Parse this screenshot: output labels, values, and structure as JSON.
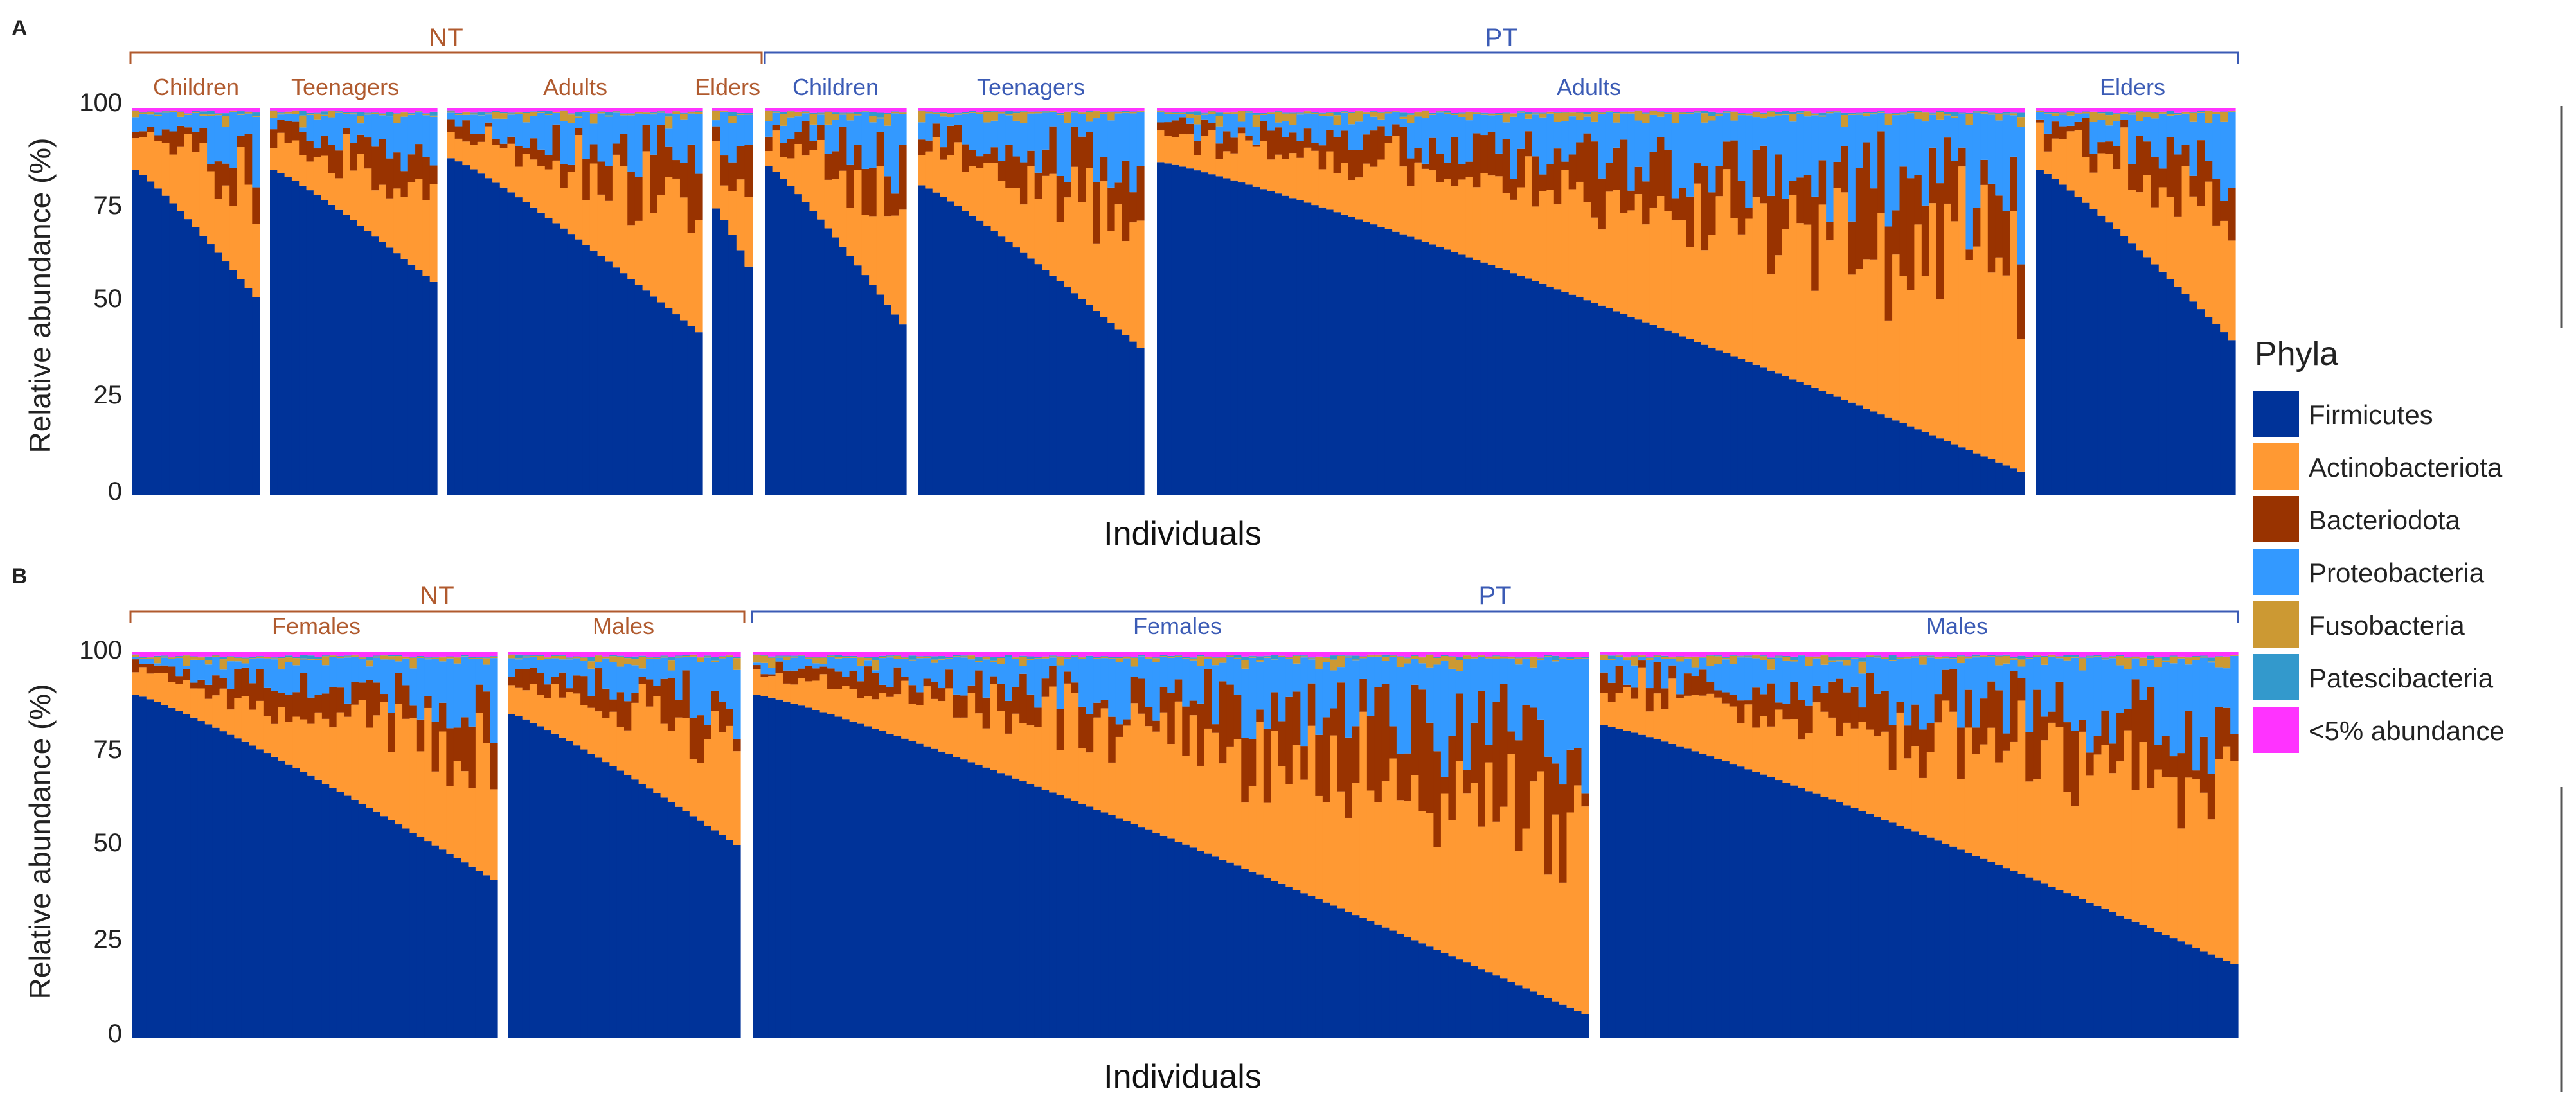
{
  "figure": {
    "panels_note": "Stacked relative-abundance bar charts of gut phyla per individual"
  },
  "colors": {
    "firmicutes": "#003399",
    "actinobacteriota": "#FF9933",
    "bacteriodota": "#993300",
    "proteobacteria": "#3399FF",
    "fusobacteria": "#CC9933",
    "patescibacteria": "#3399CC",
    "low_abundance": "#FF33FF",
    "nt_bracket": "#B05A2E",
    "pt_bracket": "#3B5BB5",
    "axis_text": "#222222"
  },
  "legend": {
    "title": "Phyla",
    "items": [
      {
        "key": "firmicutes",
        "label": "Firmicutes"
      },
      {
        "key": "actinobacteriota",
        "label": "Actinobacteriota"
      },
      {
        "key": "bacteriodota",
        "label": "Bacteriodota"
      },
      {
        "key": "proteobacteria",
        "label": "Proteobacteria"
      },
      {
        "key": "fusobacteria",
        "label": "Fusobacteria"
      },
      {
        "key": "patescibacteria",
        "label": "Patescibacteria"
      },
      {
        "key": "low_abundance",
        "label": "<5% abundance"
      }
    ]
  },
  "chart_data": [
    {
      "panel": "A",
      "type": "bar",
      "stacked": true,
      "title": "",
      "xlabel": "Individuals",
      "ylabel": "Relative abundance (%)",
      "ylim": [
        0,
        100
      ],
      "yticks": [
        0,
        25,
        50,
        75,
        100
      ],
      "groups": [
        {
          "label": "NT",
          "color_key": "nt_bracket",
          "facets": [
            {
              "label": "Children",
              "n": 17,
              "firm_start": 84,
              "firm_end": 51
            },
            {
              "label": "Teenagers",
              "n": 23,
              "firm_start": 84,
              "firm_end": 55
            },
            {
              "label": "Adults",
              "n": 34,
              "firm_start": 87,
              "firm_end": 42
            },
            {
              "label": "Elders",
              "n": 5,
              "firm_start": 74,
              "firm_end": 59
            }
          ]
        },
        {
          "label": "PT",
          "color_key": "pt_bracket",
          "facets": [
            {
              "label": "Children",
              "n": 19,
              "firm_start": 85,
              "firm_end": 44
            },
            {
              "label": "Teenagers",
              "n": 31,
              "firm_start": 80,
              "firm_end": 38
            },
            {
              "label": "Adults",
              "n": 118,
              "firm_start": 86,
              "firm_end": 6
            },
            {
              "label": "Elders",
              "n": 26,
              "firm_start": 84,
              "firm_end": 40
            }
          ]
        }
      ]
    },
    {
      "panel": "B",
      "type": "bar",
      "stacked": true,
      "title": "",
      "xlabel": "Individuals",
      "ylabel": "Relative abundance (%)",
      "ylim": [
        0,
        100
      ],
      "yticks": [
        0,
        25,
        50,
        75,
        100
      ],
      "groups": [
        {
          "label": "NT",
          "color_key": "nt_bracket",
          "facets": [
            {
              "label": "Females",
              "n": 50,
              "firm_start": 89,
              "firm_end": 41
            },
            {
              "label": "Males",
              "n": 32,
              "firm_start": 84,
              "firm_end": 50
            }
          ]
        },
        {
          "label": "PT",
          "color_key": "pt_bracket",
          "facets": [
            {
              "label": "Females",
              "n": 113,
              "firm_start": 89,
              "firm_end": 6
            },
            {
              "label": "Males",
              "n": 84,
              "firm_start": 81,
              "firm_end": 19
            }
          ]
        }
      ]
    }
  ]
}
